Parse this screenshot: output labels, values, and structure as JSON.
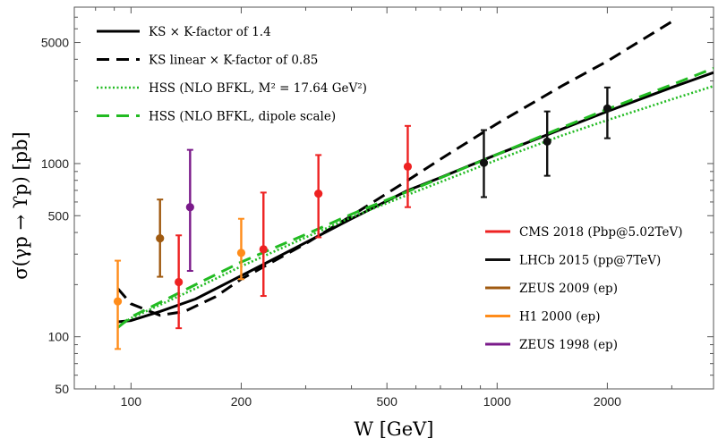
{
  "chart_data": {
    "type": "line",
    "xlabel": "W [GeV]",
    "ylabel": "σ(γp → ϒp) [pb]",
    "x_scale": "log",
    "y_scale": "log",
    "xlim": [
      70,
      3900
    ],
    "ylim": [
      50,
      8000
    ],
    "x_ticks": [
      {
        "value": 100,
        "label": "100"
      },
      {
        "value": 200,
        "label": "200"
      },
      {
        "value": 500,
        "label": "500"
      },
      {
        "value": 1000,
        "label": "1000"
      },
      {
        "value": 2000,
        "label": "2000"
      }
    ],
    "y_ticks": [
      {
        "value": 50,
        "label": "50"
      },
      {
        "value": 100,
        "label": "100"
      },
      {
        "value": 500,
        "label": "500"
      },
      {
        "value": 1000,
        "label": "1000"
      },
      {
        "value": 5000,
        "label": "5000"
      }
    ],
    "grid": false,
    "legend_lines_position": "top-left",
    "legend_points_position": "right",
    "series": [
      {
        "name": "KS × K-factor of 1.4",
        "style": "solid",
        "color": "#000000",
        "x": [
          92,
          100,
          120,
          150,
          200,
          300,
          400,
          570,
          700,
          1000,
          1500,
          2000,
          3000,
          3900
        ],
        "y": [
          122,
          124,
          140,
          165,
          225,
          350,
          480,
          700,
          830,
          1130,
          1580,
          2000,
          2750,
          3350
        ]
      },
      {
        "name": "KS linear × K-factor of 0.85",
        "style": "dashed",
        "color": "#000000",
        "x": [
          92,
          100,
          120,
          140,
          170,
          200,
          300,
          400,
          570,
          700,
          1000,
          1500,
          2000,
          3000
        ],
        "y": [
          190,
          155,
          133,
          140,
          170,
          215,
          345,
          500,
          800,
          1060,
          1700,
          2800,
          3900,
          6600
        ]
      },
      {
        "name": "HSS (NLO BFKL, M² = 17.64 GeV²)",
        "style": "dotted",
        "color": "#22bb22",
        "x": [
          92,
          100,
          150,
          200,
          300,
          400,
          570,
          1000,
          1500,
          2000,
          3000,
          3900
        ],
        "y": [
          114,
          128,
          190,
          255,
          375,
          490,
          660,
          1050,
          1450,
          1780,
          2350,
          2800
        ]
      },
      {
        "name": "HSS (NLO BFKL, dipole scale)",
        "style": "dashed",
        "color": "#22bb22",
        "x": [
          92,
          100,
          150,
          200,
          300,
          400,
          570,
          1000,
          1500,
          2000,
          3000,
          3900
        ],
        "y": [
          113,
          130,
          200,
          270,
          390,
          510,
          690,
          1130,
          1610,
          2060,
          2850,
          3550
        ]
      }
    ],
    "points": [
      {
        "name": "CMS 2018 (Pbp@5.02TeV)",
        "color": "#ee2222",
        "data": [
          {
            "x": 135,
            "y": 207,
            "lo": 112,
            "hi": 385
          },
          {
            "x": 230,
            "y": 320,
            "lo": 172,
            "hi": 680
          },
          {
            "x": 325,
            "y": 670,
            "lo": 375,
            "hi": 1120
          },
          {
            "x": 570,
            "y": 960,
            "lo": 560,
            "hi": 1650
          }
        ]
      },
      {
        "name": "LHCb 2015 (pp@7TeV)",
        "color": "#111111",
        "data": [
          {
            "x": 920,
            "y": 1010,
            "lo": 640,
            "hi": 1560
          },
          {
            "x": 1370,
            "y": 1340,
            "lo": 850,
            "hi": 2000
          },
          {
            "x": 2000,
            "y": 2080,
            "lo": 1400,
            "hi": 2750
          }
        ]
      },
      {
        "name": "ZEUS 2009 (ep)",
        "color": "#a05a10",
        "data": [
          {
            "x": 120,
            "y": 370,
            "lo": 222,
            "hi": 620
          }
        ]
      },
      {
        "name": "H1 2000 (ep)",
        "color": "#ff8c1a",
        "data": [
          {
            "x": 92,
            "y": 160,
            "lo": 85,
            "hi": 275
          },
          {
            "x": 200,
            "y": 305,
            "lo": 215,
            "hi": 480
          }
        ]
      },
      {
        "name": "ZEUS 1998 (ep)",
        "color": "#7a1a8a",
        "data": [
          {
            "x": 145,
            "y": 560,
            "lo": 240,
            "hi": 1200
          }
        ]
      }
    ]
  }
}
